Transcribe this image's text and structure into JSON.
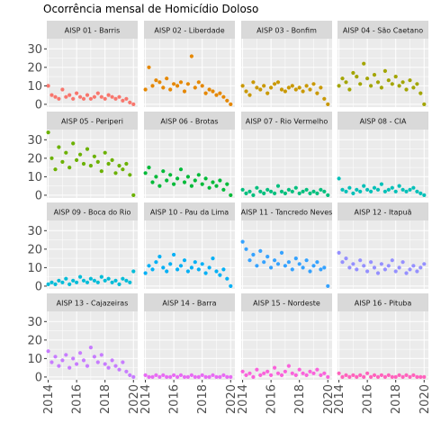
{
  "chart_data": {
    "type": "scatter",
    "facet": "wrap",
    "title": "Ocorrência mensal de Homicídio Doloso",
    "xlabel": "",
    "ylabel": "",
    "xlim": [
      2013.9,
      2020.3
    ],
    "ylim": [
      -1.5,
      35.5
    ],
    "x_ticks": [
      2014,
      2016,
      2018,
      2020
    ],
    "x_tick_labels": [
      "2014",
      "2016",
      "2018",
      "2020"
    ],
    "y_ticks": [
      0,
      10,
      20,
      30
    ],
    "y_tick_labels": [
      "0",
      "10",
      "20",
      "30"
    ],
    "grid": true,
    "legend": "none",
    "colors": {
      "panel_bg": "#ebebeb",
      "grid_major": "#ffffff",
      "strip_bg": "#d9d9d9",
      "tick_mark": "#333333",
      "title": "#000000"
    },
    "panels": [
      {
        "label": "AISP 01 - Barris",
        "color": "#F8766D",
        "x": [
          2014.0,
          2014.25,
          2014.5,
          2014.75,
          2015.0,
          2015.25,
          2015.5,
          2015.75,
          2016.0,
          2016.25,
          2016.5,
          2016.75,
          2017.0,
          2017.25,
          2017.5,
          2017.75,
          2018.0,
          2018.25,
          2018.5,
          2018.75,
          2019.0,
          2019.25,
          2019.5,
          2019.75,
          2020.0
        ],
        "y": [
          10,
          5,
          4,
          3,
          8,
          4,
          5,
          3,
          6,
          4,
          3,
          5,
          3,
          4,
          6,
          4,
          3,
          5,
          4,
          3,
          4,
          2,
          3,
          1,
          0
        ]
      },
      {
        "label": "AISP 02 - Liberdade",
        "color": "#E58700",
        "x": [
          2014.0,
          2014.25,
          2014.5,
          2014.75,
          2015.0,
          2015.25,
          2015.5,
          2015.75,
          2016.0,
          2016.25,
          2016.5,
          2016.75,
          2017.0,
          2017.25,
          2017.5,
          2017.75,
          2018.0,
          2018.25,
          2018.5,
          2018.75,
          2019.0,
          2019.25,
          2019.5,
          2019.75,
          2020.0
        ],
        "y": [
          8,
          20,
          10,
          13,
          12,
          9,
          14,
          8,
          11,
          10,
          12,
          7,
          11,
          26,
          9,
          12,
          10,
          6,
          8,
          7,
          5,
          6,
          4,
          2,
          0
        ]
      },
      {
        "label": "AISP 03 - Bonfim",
        "color": "#C99800",
        "x": [
          2014.0,
          2014.25,
          2014.5,
          2014.75,
          2015.0,
          2015.25,
          2015.5,
          2015.75,
          2016.0,
          2016.25,
          2016.5,
          2016.75,
          2017.0,
          2017.25,
          2017.5,
          2017.75,
          2018.0,
          2018.25,
          2018.5,
          2018.75,
          2019.0,
          2019.25,
          2019.5,
          2019.75,
          2020.0
        ],
        "y": [
          10,
          7,
          5,
          12,
          9,
          8,
          10,
          6,
          9,
          11,
          12,
          8,
          7,
          9,
          10,
          8,
          9,
          7,
          10,
          8,
          11,
          6,
          9,
          3,
          0
        ]
      },
      {
        "label": "AISP 04 - São Caetano",
        "color": "#A3A500",
        "x": [
          2014.0,
          2014.25,
          2014.5,
          2014.75,
          2015.0,
          2015.25,
          2015.5,
          2015.75,
          2016.0,
          2016.25,
          2016.5,
          2016.75,
          2017.0,
          2017.25,
          2017.5,
          2017.75,
          2018.0,
          2018.25,
          2018.5,
          2018.75,
          2019.0,
          2019.25,
          2019.5,
          2019.75,
          2020.0
        ],
        "y": [
          10,
          14,
          12,
          8,
          17,
          15,
          11,
          22,
          14,
          10,
          16,
          12,
          9,
          18,
          13,
          11,
          15,
          10,
          12,
          8,
          13,
          9,
          11,
          6,
          0
        ]
      },
      {
        "label": "AISP 05 - Periperi",
        "color": "#6BB100",
        "x": [
          2014.0,
          2014.25,
          2014.5,
          2014.75,
          2015.0,
          2015.25,
          2015.5,
          2015.75,
          2016.0,
          2016.25,
          2016.5,
          2016.75,
          2017.0,
          2017.25,
          2017.5,
          2017.75,
          2018.0,
          2018.25,
          2018.5,
          2018.75,
          2019.0,
          2019.25,
          2019.5,
          2019.75,
          2020.0
        ],
        "y": [
          34,
          20,
          14,
          26,
          18,
          23,
          15,
          28,
          19,
          22,
          17,
          25,
          16,
          21,
          18,
          13,
          23,
          17,
          19,
          12,
          16,
          14,
          17,
          11,
          0
        ]
      },
      {
        "label": "AISP 06 - Brotas",
        "color": "#00BA38",
        "x": [
          2014.0,
          2014.25,
          2014.5,
          2014.75,
          2015.0,
          2015.25,
          2015.5,
          2015.75,
          2016.0,
          2016.25,
          2016.5,
          2016.75,
          2017.0,
          2017.25,
          2017.5,
          2017.75,
          2018.0,
          2018.25,
          2018.5,
          2018.75,
          2019.0,
          2019.25,
          2019.5,
          2019.75,
          2020.0
        ],
        "y": [
          12,
          15,
          7,
          10,
          5,
          13,
          8,
          11,
          6,
          9,
          14,
          7,
          10,
          5,
          8,
          11,
          6,
          9,
          4,
          7,
          5,
          8,
          3,
          6,
          0
        ]
      },
      {
        "label": "AISP 07 - Rio Vermelho",
        "color": "#00BF7D",
        "x": [
          2014.0,
          2014.25,
          2014.5,
          2014.75,
          2015.0,
          2015.25,
          2015.5,
          2015.75,
          2016.0,
          2016.25,
          2016.5,
          2016.75,
          2017.0,
          2017.25,
          2017.5,
          2017.75,
          2018.0,
          2018.25,
          2018.5,
          2018.75,
          2019.0,
          2019.25,
          2019.5,
          2019.75,
          2020.0
        ],
        "y": [
          3,
          1,
          2,
          0,
          4,
          2,
          1,
          3,
          2,
          1,
          5,
          2,
          1,
          3,
          2,
          4,
          1,
          2,
          3,
          1,
          2,
          1,
          3,
          2,
          0
        ]
      },
      {
        "label": "AISP 08 - CIA",
        "color": "#00C0B8",
        "x": [
          2014.0,
          2014.25,
          2014.5,
          2014.75,
          2015.0,
          2015.25,
          2015.5,
          2015.75,
          2016.0,
          2016.25,
          2016.5,
          2016.75,
          2017.0,
          2017.25,
          2017.5,
          2017.75,
          2018.0,
          2018.25,
          2018.5,
          2018.75,
          2019.0,
          2019.25,
          2019.5,
          2019.75,
          2020.0
        ],
        "y": [
          9,
          3,
          2,
          4,
          1,
          3,
          2,
          5,
          3,
          2,
          4,
          3,
          6,
          2,
          3,
          4,
          2,
          5,
          3,
          2,
          3,
          4,
          2,
          1,
          0
        ]
      },
      {
        "label": "AISP 09 - Boca do Rio",
        "color": "#00BCD8",
        "x": [
          2014.0,
          2014.25,
          2014.5,
          2014.75,
          2015.0,
          2015.25,
          2015.5,
          2015.75,
          2016.0,
          2016.25,
          2016.5,
          2016.75,
          2017.0,
          2017.25,
          2017.5,
          2017.75,
          2018.0,
          2018.25,
          2018.5,
          2018.75,
          2019.0,
          2019.25,
          2019.5,
          2019.75,
          2020.0
        ],
        "y": [
          1,
          2,
          1,
          3,
          2,
          4,
          1,
          3,
          2,
          5,
          3,
          2,
          4,
          3,
          2,
          5,
          3,
          4,
          2,
          3,
          1,
          4,
          3,
          2,
          8
        ]
      },
      {
        "label": "AISP 10 - Pau da Lima",
        "color": "#00B0F6",
        "x": [
          2014.0,
          2014.25,
          2014.5,
          2014.75,
          2015.0,
          2015.25,
          2015.5,
          2015.75,
          2016.0,
          2016.25,
          2016.5,
          2016.75,
          2017.0,
          2017.25,
          2017.5,
          2017.75,
          2018.0,
          2018.25,
          2018.5,
          2018.75,
          2019.0,
          2019.25,
          2019.5,
          2019.75,
          2020.0
        ],
        "y": [
          7,
          11,
          9,
          13,
          16,
          10,
          8,
          12,
          17,
          9,
          11,
          14,
          8,
          10,
          13,
          9,
          12,
          7,
          10,
          15,
          8,
          6,
          9,
          4,
          0
        ]
      },
      {
        "label": "AISP 11 - Tancredo Neves",
        "color": "#35A2FF",
        "x": [
          2014.0,
          2014.25,
          2014.5,
          2014.75,
          2015.0,
          2015.25,
          2015.5,
          2015.75,
          2016.0,
          2016.25,
          2016.5,
          2016.75,
          2017.0,
          2017.25,
          2017.5,
          2017.75,
          2018.0,
          2018.25,
          2018.5,
          2018.75,
          2019.0,
          2019.25,
          2019.5,
          2019.75,
          2020.0
        ],
        "y": [
          24,
          20,
          14,
          17,
          11,
          19,
          13,
          16,
          10,
          14,
          12,
          18,
          11,
          13,
          9,
          15,
          12,
          10,
          14,
          8,
          11,
          13,
          9,
          10,
          0
        ]
      },
      {
        "label": "AISP 12 - Itapuã",
        "color": "#9590FF",
        "x": [
          2014.0,
          2014.25,
          2014.5,
          2014.75,
          2015.0,
          2015.25,
          2015.5,
          2015.75,
          2016.0,
          2016.25,
          2016.5,
          2016.75,
          2017.0,
          2017.25,
          2017.5,
          2017.75,
          2018.0,
          2018.25,
          2018.5,
          2018.75,
          2019.0,
          2019.25,
          2019.5,
          2019.75,
          2020.0
        ],
        "y": [
          18,
          13,
          15,
          10,
          12,
          9,
          14,
          11,
          8,
          13,
          10,
          7,
          12,
          9,
          11,
          14,
          8,
          10,
          13,
          7,
          9,
          11,
          8,
          10,
          12
        ]
      },
      {
        "label": "AISP 13 - Cajazeiras",
        "color": "#C77CFF",
        "x": [
          2014.0,
          2014.25,
          2014.5,
          2014.75,
          2015.0,
          2015.25,
          2015.5,
          2015.75,
          2016.0,
          2016.25,
          2016.5,
          2016.75,
          2017.0,
          2017.25,
          2017.5,
          2017.75,
          2018.0,
          2018.25,
          2018.5,
          2018.75,
          2019.0,
          2019.25,
          2019.5,
          2019.75,
          2020.0
        ],
        "y": [
          14,
          8,
          11,
          6,
          9,
          12,
          5,
          10,
          7,
          13,
          9,
          6,
          16,
          11,
          8,
          12,
          7,
          5,
          9,
          6,
          4,
          8,
          3,
          1,
          0
        ]
      },
      {
        "label": "AISP 14 - Barra",
        "color": "#E76BF3",
        "x": [
          2014.0,
          2014.25,
          2014.5,
          2014.75,
          2015.0,
          2015.25,
          2015.5,
          2015.75,
          2016.0,
          2016.25,
          2016.5,
          2016.75,
          2017.0,
          2017.25,
          2017.5,
          2017.75,
          2018.0,
          2018.25,
          2018.5,
          2018.75,
          2019.0,
          2019.25,
          2019.5,
          2019.75,
          2020.0
        ],
        "y": [
          1,
          0,
          0,
          1,
          0,
          1,
          0,
          0,
          1,
          0,
          1,
          0,
          0,
          1,
          0,
          0,
          1,
          0,
          0,
          1,
          0,
          0,
          1,
          0,
          0
        ]
      },
      {
        "label": "AISP 15 - Nordeste",
        "color": "#FA62DB",
        "x": [
          2014.0,
          2014.25,
          2014.5,
          2014.75,
          2015.0,
          2015.25,
          2015.5,
          2015.75,
          2016.0,
          2016.25,
          2016.5,
          2016.75,
          2017.0,
          2017.25,
          2017.5,
          2017.75,
          2018.0,
          2018.25,
          2018.5,
          2018.75,
          2019.0,
          2019.25,
          2019.5,
          2019.75,
          2020.0
        ],
        "y": [
          3,
          1,
          2,
          0,
          4,
          1,
          2,
          3,
          1,
          5,
          2,
          1,
          3,
          6,
          2,
          1,
          4,
          2,
          1,
          3,
          2,
          4,
          1,
          2,
          0
        ]
      },
      {
        "label": "AISP 16 - Pituba",
        "color": "#FF62BC",
        "x": [
          2014.0,
          2014.25,
          2014.5,
          2014.75,
          2015.0,
          2015.25,
          2015.5,
          2015.75,
          2016.0,
          2016.25,
          2016.5,
          2016.75,
          2017.0,
          2017.25,
          2017.5,
          2017.75,
          2018.0,
          2018.25,
          2018.5,
          2018.75,
          2019.0,
          2019.25,
          2019.5,
          2019.75,
          2020.0
        ],
        "y": [
          2,
          0,
          1,
          0,
          1,
          0,
          1,
          0,
          2,
          0,
          1,
          0,
          1,
          0,
          1,
          0,
          0,
          1,
          0,
          1,
          0,
          1,
          0,
          0,
          0
        ]
      }
    ]
  }
}
